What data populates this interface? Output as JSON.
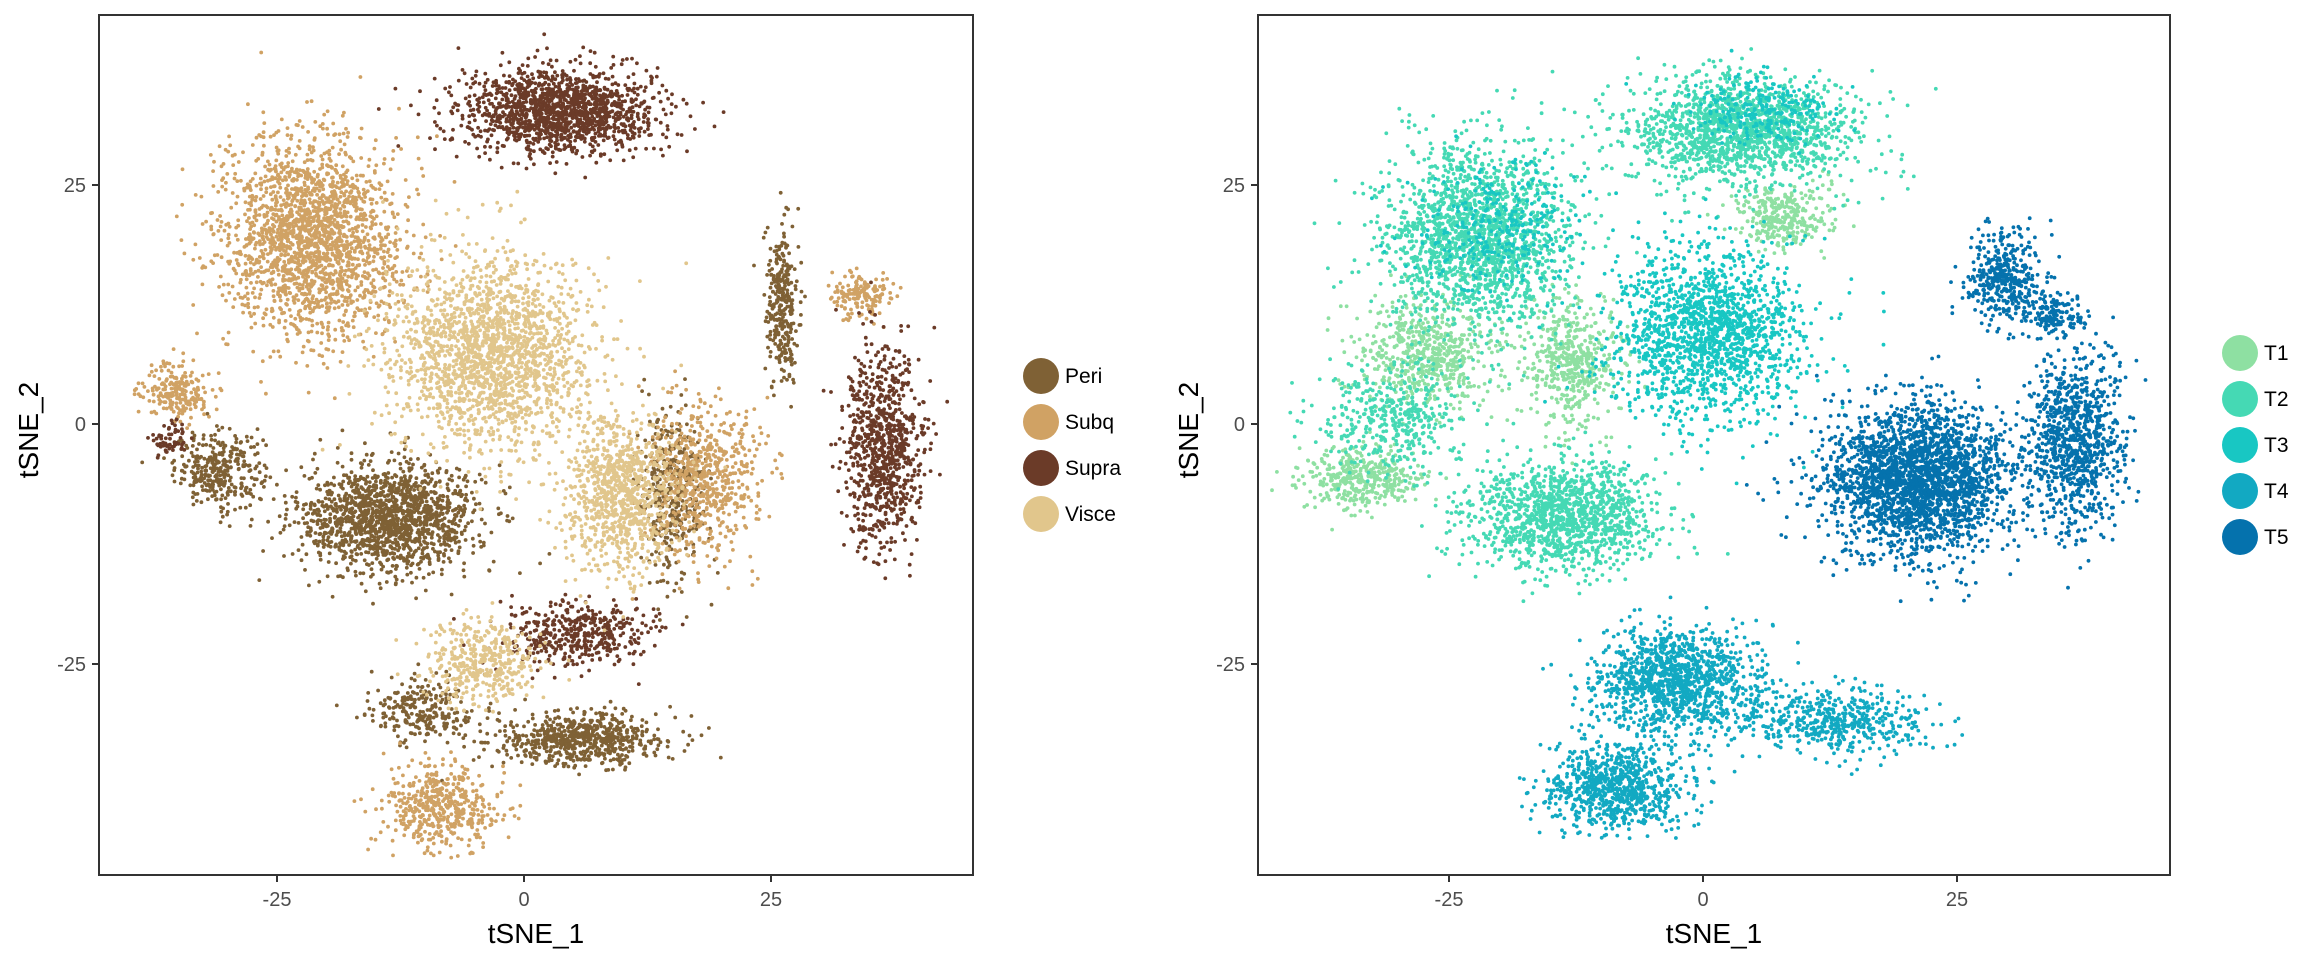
{
  "chart_data": [
    {
      "type": "scatter",
      "title": "",
      "xlabel": "tSNE_1",
      "ylabel": "tSNE_2",
      "xlim": [
        -43,
        44
      ],
      "ylim": [
        -47,
        42
      ],
      "xticks": [
        -25,
        0,
        25
      ],
      "yticks": [
        -25,
        0,
        25
      ],
      "xtick_labels": [
        "-25",
        "0",
        "25"
      ],
      "ytick_labels": [
        "-25",
        "0",
        "25"
      ],
      "grid": false,
      "legend_position": "right",
      "series": [
        {
          "name": "Peri",
          "color": "#7f6135",
          "clusters": [
            {
              "center": [
                -31,
                -5
              ],
              "spread": [
                4,
                3.5
              ],
              "points": 330
            },
            {
              "center": [
                -14,
                -10
              ],
              "spread": [
                8,
                5
              ],
              "points": 1500
            },
            {
              "center": [
                -11,
                -30
              ],
              "spread": [
                5,
                3
              ],
              "points": 250
            },
            {
              "center": [
                5,
                -33
              ],
              "spread": [
                8,
                2.5
              ],
              "points": 650
            },
            {
              "center": [
                14,
                -7
              ],
              "spread": [
                3,
                7
              ],
              "points": 400
            },
            {
              "center": [
                25,
                12
              ],
              "spread": [
                1.5,
                7
              ],
              "points": 300
            }
          ]
        },
        {
          "name": "Subq",
          "color": "#d0a264",
          "clusters": [
            {
              "center": [
                -22,
                19
              ],
              "spread": [
                8,
                9
              ],
              "points": 2000
            },
            {
              "center": [
                -35,
                3
              ],
              "spread": [
                3,
                2.5
              ],
              "points": 220
            },
            {
              "center": [
                -9,
                -40
              ],
              "spread": [
                5,
                4
              ],
              "points": 480
            },
            {
              "center": [
                17,
                -6
              ],
              "spread": [
                5,
                7
              ],
              "points": 650
            },
            {
              "center": [
                33,
                13
              ],
              "spread": [
                3,
                2
              ],
              "points": 160
            }
          ]
        },
        {
          "name": "Supra",
          "color": "#6b3b28",
          "clusters": [
            {
              "center": [
                3,
                32
              ],
              "spread": [
                9,
                4
              ],
              "points": 1500
            },
            {
              "center": [
                35,
                -3
              ],
              "spread": [
                3.5,
                9
              ],
              "points": 850
            },
            {
              "center": [
                5,
                -22
              ],
              "spread": [
                7,
                3
              ],
              "points": 420
            },
            {
              "center": [
                -36,
                -2
              ],
              "spread": [
                1.5,
                1.5
              ],
              "points": 60
            }
          ]
        },
        {
          "name": "Visce",
          "color": "#e1c68c",
          "clusters": [
            {
              "center": [
                -4,
                7
              ],
              "spread": [
                9,
                9
              ],
              "points": 1900
            },
            {
              "center": [
                9,
                -8
              ],
              "spread": [
                5,
                7
              ],
              "points": 900
            },
            {
              "center": [
                -5,
                -25
              ],
              "spread": [
                5,
                4
              ],
              "points": 400
            }
          ]
        }
      ]
    },
    {
      "type": "scatter",
      "title": "",
      "xlabel": "tSNE_1",
      "ylabel": "tSNE_2",
      "xlim": [
        -43,
        44
      ],
      "ylim": [
        -47,
        42
      ],
      "xticks": [
        -25,
        0,
        25
      ],
      "yticks": [
        -25,
        0,
        25
      ],
      "xtick_labels": [
        "-25",
        "0",
        "25"
      ],
      "ytick_labels": [
        "-25",
        "0",
        "25"
      ],
      "grid": false,
      "legend_position": "right",
      "series": [
        {
          "name": "T1",
          "color": "#8ee0a2",
          "clusters": [
            {
              "center": [
                -27,
                7
              ],
              "spread": [
                6,
                5
              ],
              "points": 600
            },
            {
              "center": [
                -13,
                6
              ],
              "spread": [
                4,
                6
              ],
              "points": 500
            },
            {
              "center": [
                -33,
                -6
              ],
              "spread": [
                5,
                3
              ],
              "points": 400
            },
            {
              "center": [
                7,
                21
              ],
              "spread": [
                4,
                3
              ],
              "points": 300
            }
          ]
        },
        {
          "name": "T2",
          "color": "#45d9b4",
          "clusters": [
            {
              "center": [
                -22,
                19
              ],
              "spread": [
                8,
                9
              ],
              "points": 1700
            },
            {
              "center": [
                3,
                30
              ],
              "spread": [
                10,
                5
              ],
              "points": 1500
            },
            {
              "center": [
                -14,
                -10
              ],
              "spread": [
                8,
                5
              ],
              "points": 1300
            },
            {
              "center": [
                -30,
                0
              ],
              "spread": [
                6,
                5
              ],
              "points": 400
            }
          ]
        },
        {
          "name": "T3",
          "color": "#18c7c3",
          "clusters": [
            {
              "center": [
                0,
                9
              ],
              "spread": [
                8,
                8
              ],
              "points": 1600
            },
            {
              "center": [
                -20,
                20
              ],
              "spread": [
                7,
                6
              ],
              "points": 300
            },
            {
              "center": [
                5,
                32
              ],
              "spread": [
                6,
                3
              ],
              "points": 250
            }
          ]
        },
        {
          "name": "T4",
          "color": "#12a9c2",
          "clusters": [
            {
              "center": [
                -3,
                -27
              ],
              "spread": [
                7,
                5
              ],
              "points": 1200
            },
            {
              "center": [
                -9,
                -38
              ],
              "spread": [
                6,
                4
              ],
              "points": 800
            },
            {
              "center": [
                12,
                -31
              ],
              "spread": [
                8,
                3
              ],
              "points": 500
            }
          ]
        },
        {
          "name": "T5",
          "color": "#0572ad",
          "clusters": [
            {
              "center": [
                20,
                -6
              ],
              "spread": [
                8,
                7
              ],
              "points": 2500
            },
            {
              "center": [
                35,
                -2
              ],
              "spread": [
                4,
                9
              ],
              "points": 900
            },
            {
              "center": [
                28,
                15
              ],
              "spread": [
                3,
                4
              ],
              "points": 400
            },
            {
              "center": [
                33,
                11
              ],
              "spread": [
                3,
                2
              ],
              "points": 150
            }
          ]
        }
      ]
    }
  ]
}
